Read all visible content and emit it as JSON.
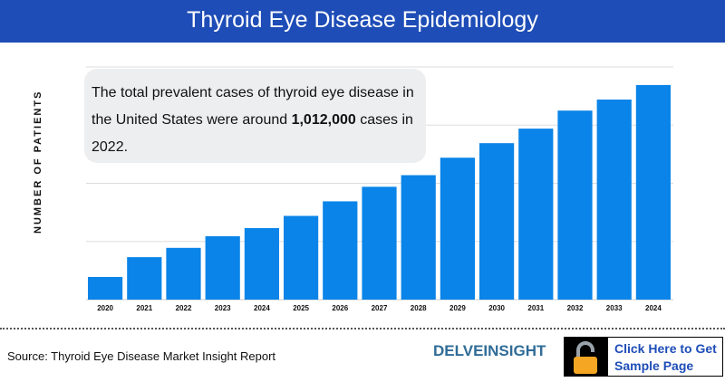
{
  "header": {
    "title": "Thyroid Eye Disease Epidemiology"
  },
  "callout": {
    "text_before": "The total prevalent cases of thyroid eye disease in the United States were around ",
    "highlight": "1,012,000",
    "text_after": " cases in 2022."
  },
  "footer": {
    "source": "Source: Thyroid Eye Disease Market Insight Report",
    "logo": "DELVEINSIGHT",
    "cta": "Click Here to Get Sample Page",
    "cta_icon": "unlocked-padlock-icon"
  },
  "chart_data": {
    "type": "bar",
    "title": "Thyroid Eye Disease Epidemiology",
    "xlabel": "",
    "ylabel": "NUMBER OF PATIENTS",
    "categories": [
      "2020",
      "2021",
      "2022",
      "2023",
      "2024",
      "2025",
      "2026",
      "2027",
      "2028",
      "2029",
      "2030",
      "2031",
      "2032",
      "2033",
      "2024"
    ],
    "values": [
      0.39,
      0.73,
      0.89,
      1.09,
      1.23,
      1.44,
      1.69,
      1.94,
      2.14,
      2.44,
      2.69,
      2.94,
      3.25,
      3.44,
      3.69
    ],
    "ylim": [
      0,
      4
    ],
    "y_tick_labels": "none",
    "grid": true,
    "colors": {
      "bar": "#0a84e8",
      "grid": "#dddddd",
      "header": "#1e4db7"
    }
  }
}
